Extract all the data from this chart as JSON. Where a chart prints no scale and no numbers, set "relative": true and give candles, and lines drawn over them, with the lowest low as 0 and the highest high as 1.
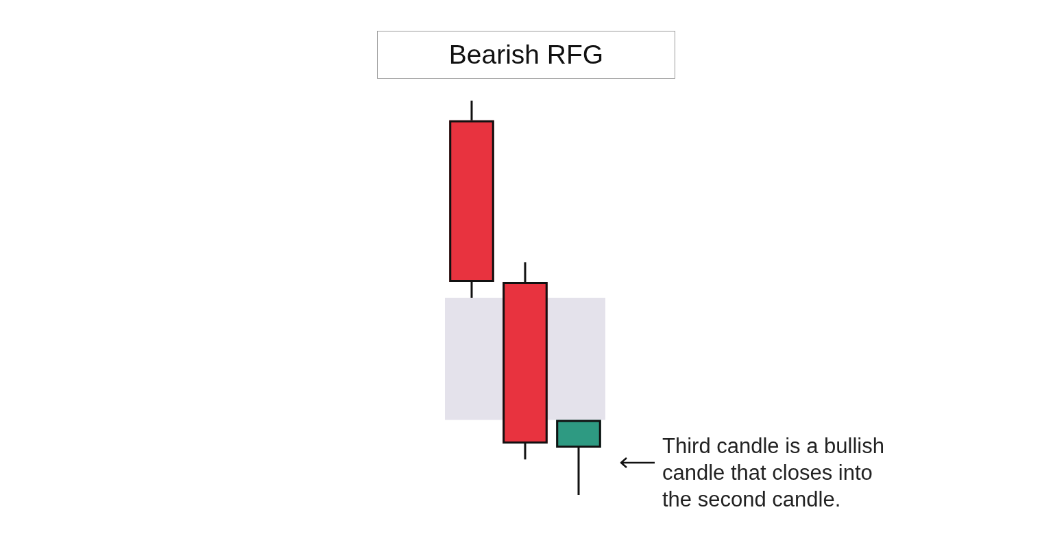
{
  "chart_data": {
    "type": "candlestick",
    "title": "Bearish RFG",
    "categories": [
      null,
      null,
      null
    ],
    "ohlc": [
      [
        0.95,
        1,
        0.5,
        0.54
      ],
      [
        0.54,
        0.59,
        0.09,
        0.13
      ],
      [
        0.12,
        0.19,
        0,
        0.19
      ]
    ],
    "colors": [
      "#e8333f",
      "#e8333f",
      "#2e9a82"
    ],
    "relative": true,
    "bands": [
      {
        "axis": "y",
        "from": 0.5,
        "to": 0.19,
        "color": "#e4e2eb"
      }
    ],
    "annotations": [
      "Third candle is a bullish candle that closes into the second candle."
    ]
  }
}
